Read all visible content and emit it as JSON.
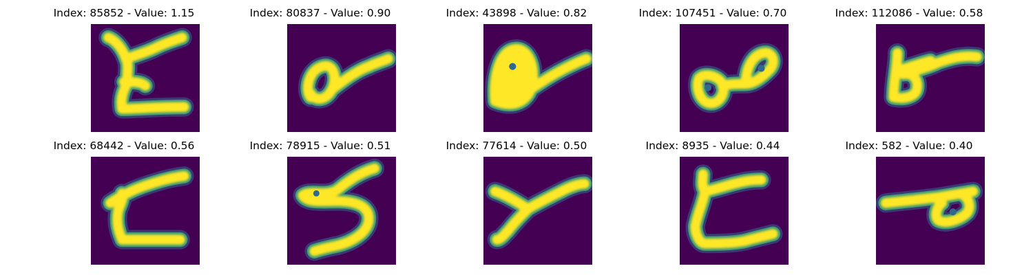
{
  "colormap": {
    "background": "#440154",
    "low": "#31688e",
    "mid": "#35b779",
    "high": "#fde725"
  },
  "panels": [
    {
      "title": "Index: 85852 - Value: 1.15",
      "index": 85852,
      "value": 1.15,
      "glyph": "Z-like handwritten stroke"
    },
    {
      "title": "Index: 80837 - Value: 0.90",
      "index": 80837,
      "value": 0.9,
      "glyph": "loop with tail"
    },
    {
      "title": "Index: 43898 - Value: 0.82",
      "index": 43898,
      "value": 0.82,
      "glyph": "filled loop with tail"
    },
    {
      "title": "Index: 107451 - Value: 0.70",
      "index": 107451,
      "value": 0.7,
      "glyph": "double loop"
    },
    {
      "title": "Index: 112086 - Value: 0.58",
      "index": 112086,
      "value": 0.58,
      "glyph": "b-like stroke with tail"
    },
    {
      "title": "Index: 68442 - Value: 0.56",
      "index": 68442,
      "value": 0.56,
      "glyph": "Z-like stroke"
    },
    {
      "title": "Index: 78915 - Value: 0.51",
      "index": 78915,
      "value": 0.51,
      "glyph": "S-like stroke"
    },
    {
      "title": "Index: 77614 - Value: 0.50",
      "index": 77614,
      "value": 0.5,
      "glyph": "Y-like stroke"
    },
    {
      "title": "Index: 8935 - Value: 0.44",
      "index": 8935,
      "value": 0.44,
      "glyph": "Z-like stroke"
    },
    {
      "title": "Index: 582 - Value: 0.40",
      "index": 582,
      "value": 0.4,
      "glyph": "horizontal stroke with loop"
    }
  ]
}
